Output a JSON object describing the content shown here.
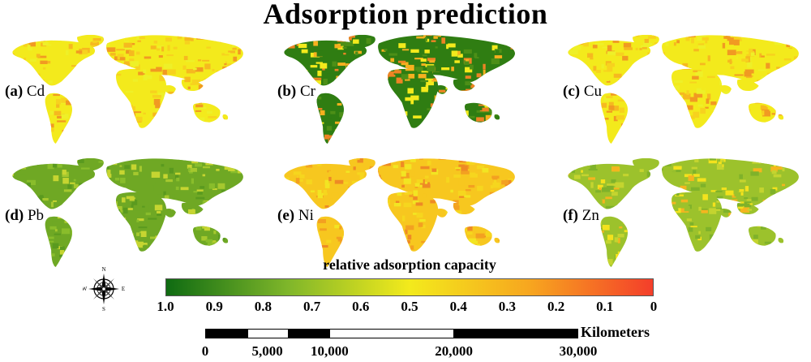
{
  "title": "Adsorption prediction",
  "panels": [
    {
      "letter": "(a)",
      "metal": "Cd",
      "dominant": "yellow"
    },
    {
      "letter": "(b)",
      "metal": "Cr",
      "dominant": "green-orange"
    },
    {
      "letter": "(c)",
      "metal": "Cu",
      "dominant": "yellow"
    },
    {
      "letter": "(d)",
      "metal": "Pb",
      "dominant": "green"
    },
    {
      "letter": "(e)",
      "metal": "Ni",
      "dominant": "orange"
    },
    {
      "letter": "(f)",
      "metal": "Zn",
      "dominant": "yellow-green"
    }
  ],
  "colorbar": {
    "title": "relative adsorption capacity",
    "ticks": [
      "1.0",
      "0.9",
      "0.8",
      "0.7",
      "0.6",
      "0.5",
      "0.4",
      "0.3",
      "0.2",
      "0.1",
      "0"
    ],
    "colors": [
      "#0f6b12",
      "#7fb62a",
      "#f3ea1c",
      "#f7a51f",
      "#f43e2a"
    ]
  },
  "compass": {
    "n": "N",
    "s": "S",
    "e": "E",
    "w": "W"
  },
  "scalebar": {
    "unit": "Kilometers",
    "ticks": [
      "0",
      "5,000",
      "10,000",
      "20,000",
      "30,000"
    ],
    "values": [
      0,
      5000,
      10000,
      20000,
      30000
    ]
  }
}
